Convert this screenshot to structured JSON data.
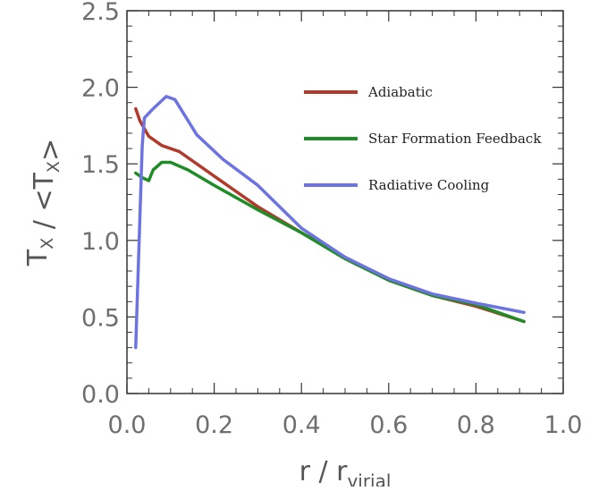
{
  "chart_data": {
    "type": "line",
    "title": "",
    "xlabel": "r / r_virial",
    "ylabel": "T_X / <T_X>",
    "xlim": [
      0.0,
      1.0
    ],
    "ylim": [
      0.0,
      2.5
    ],
    "x_ticks": [
      "0.0",
      "0.2",
      "0.4",
      "0.6",
      "0.8",
      "1.0"
    ],
    "y_ticks": [
      "0.0",
      "0.5",
      "1.0",
      "1.5",
      "2.0",
      "2.5"
    ],
    "grid": false,
    "legend_position": "upper-right",
    "series": [
      {
        "name": "Adiabatic",
        "color": "#b23a2c",
        "x": [
          0.02,
          0.03,
          0.05,
          0.08,
          0.12,
          0.2,
          0.3,
          0.4,
          0.5,
          0.6,
          0.7,
          0.8,
          0.91
        ],
        "y": [
          1.86,
          1.78,
          1.68,
          1.62,
          1.58,
          1.42,
          1.22,
          1.05,
          0.89,
          0.74,
          0.64,
          0.57,
          0.47
        ]
      },
      {
        "name": "Star Formation Feedback",
        "color": "#1f8c27",
        "x": [
          0.02,
          0.035,
          0.05,
          0.06,
          0.08,
          0.1,
          0.14,
          0.2,
          0.3,
          0.4,
          0.5,
          0.6,
          0.7,
          0.8,
          0.91
        ],
        "y": [
          1.44,
          1.41,
          1.39,
          1.46,
          1.51,
          1.51,
          1.46,
          1.36,
          1.2,
          1.05,
          0.88,
          0.74,
          0.64,
          0.58,
          0.47
        ]
      },
      {
        "name": "Radiative Cooling",
        "color": "#6d73e0",
        "x": [
          0.02,
          0.035,
          0.04,
          0.06,
          0.09,
          0.11,
          0.16,
          0.22,
          0.3,
          0.4,
          0.5,
          0.6,
          0.7,
          0.8,
          0.91
        ],
        "y": [
          0.3,
          1.62,
          1.8,
          1.86,
          1.94,
          1.92,
          1.69,
          1.53,
          1.36,
          1.08,
          0.89,
          0.75,
          0.65,
          0.59,
          0.53
        ]
      }
    ]
  }
}
